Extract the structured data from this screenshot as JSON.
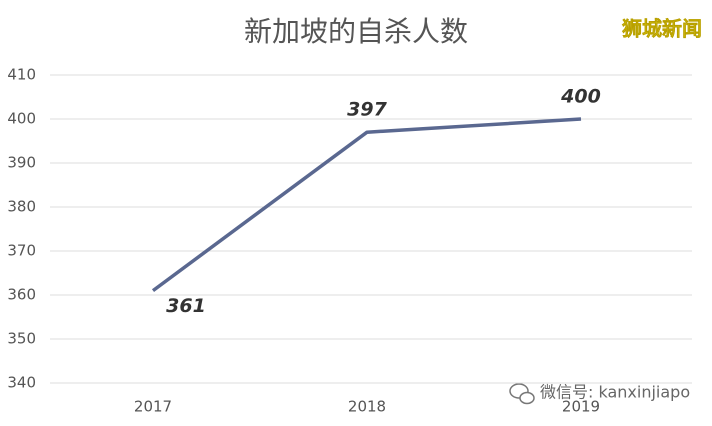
{
  "chart_data": {
    "type": "line",
    "title": "新加坡的自杀人数",
    "categories": [
      "2017",
      "2018",
      "2019"
    ],
    "values": [
      361,
      397,
      400
    ],
    "color": "#5a6890",
    "ylim": [
      340,
      410
    ],
    "yticks": [
      340,
      350,
      360,
      370,
      380,
      390,
      400,
      410
    ],
    "grid": true,
    "watermark": "狮城新闻",
    "wechat": "微信号: kanxinjiapo"
  }
}
